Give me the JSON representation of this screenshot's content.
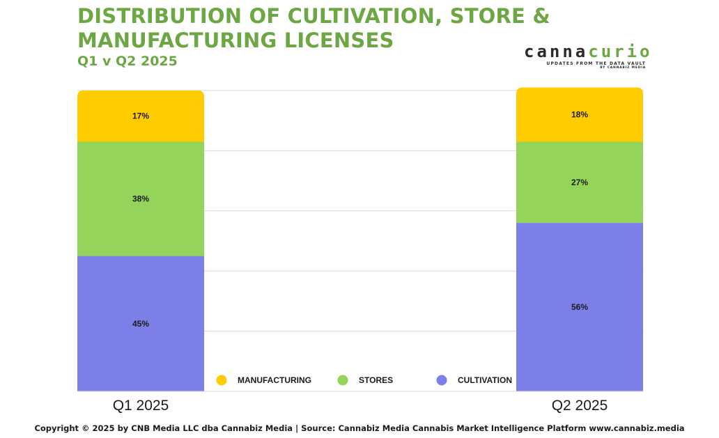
{
  "header": {
    "title": "DISTRIBUTION OF CULTIVATION, STORE & MANUFACTURING LICENSES",
    "subtitle": "Q1 v Q2 2025"
  },
  "logo": {
    "word_part1": "canna",
    "word_part2": "curio",
    "tagline": "UPDATES FROM THE DATA VAULT",
    "byline": "BY CANNABIZ MEDIA"
  },
  "colors": {
    "title": "#6ca744",
    "manufacturing": "#ffcc00",
    "stores": "#94d45a",
    "cultivation": "#7d7fe8",
    "grid": "#d9d9d9"
  },
  "chart_data": {
    "type": "bar",
    "stacked": true,
    "percent": true,
    "categories": [
      "Q1 2025",
      "Q2 2025"
    ],
    "series": [
      {
        "name": "CULTIVATION",
        "values": [
          45,
          56
        ],
        "labels": [
          "45%",
          "56%"
        ],
        "color": "#7d7fe8"
      },
      {
        "name": "STORES",
        "values": [
          38,
          27
        ],
        "labels": [
          "38%",
          "27%"
        ],
        "color": "#94d45a"
      },
      {
        "name": "MANUFACTURING",
        "values": [
          17,
          18
        ],
        "labels": [
          "17%",
          "18%"
        ],
        "color": "#ffcc00"
      }
    ],
    "legend": {
      "position": "bottom-center",
      "items": [
        "MANUFACTURING",
        "STORES",
        "CULTIVATION"
      ]
    },
    "ylim": [
      0,
      100
    ],
    "grid": true
  },
  "footer": {
    "text": "Copyright © 2025 by CNB Media LLC dba Cannabiz Media | Source: Cannabiz Media Cannabis Market Intelligence Platform www.cannabiz.media"
  }
}
